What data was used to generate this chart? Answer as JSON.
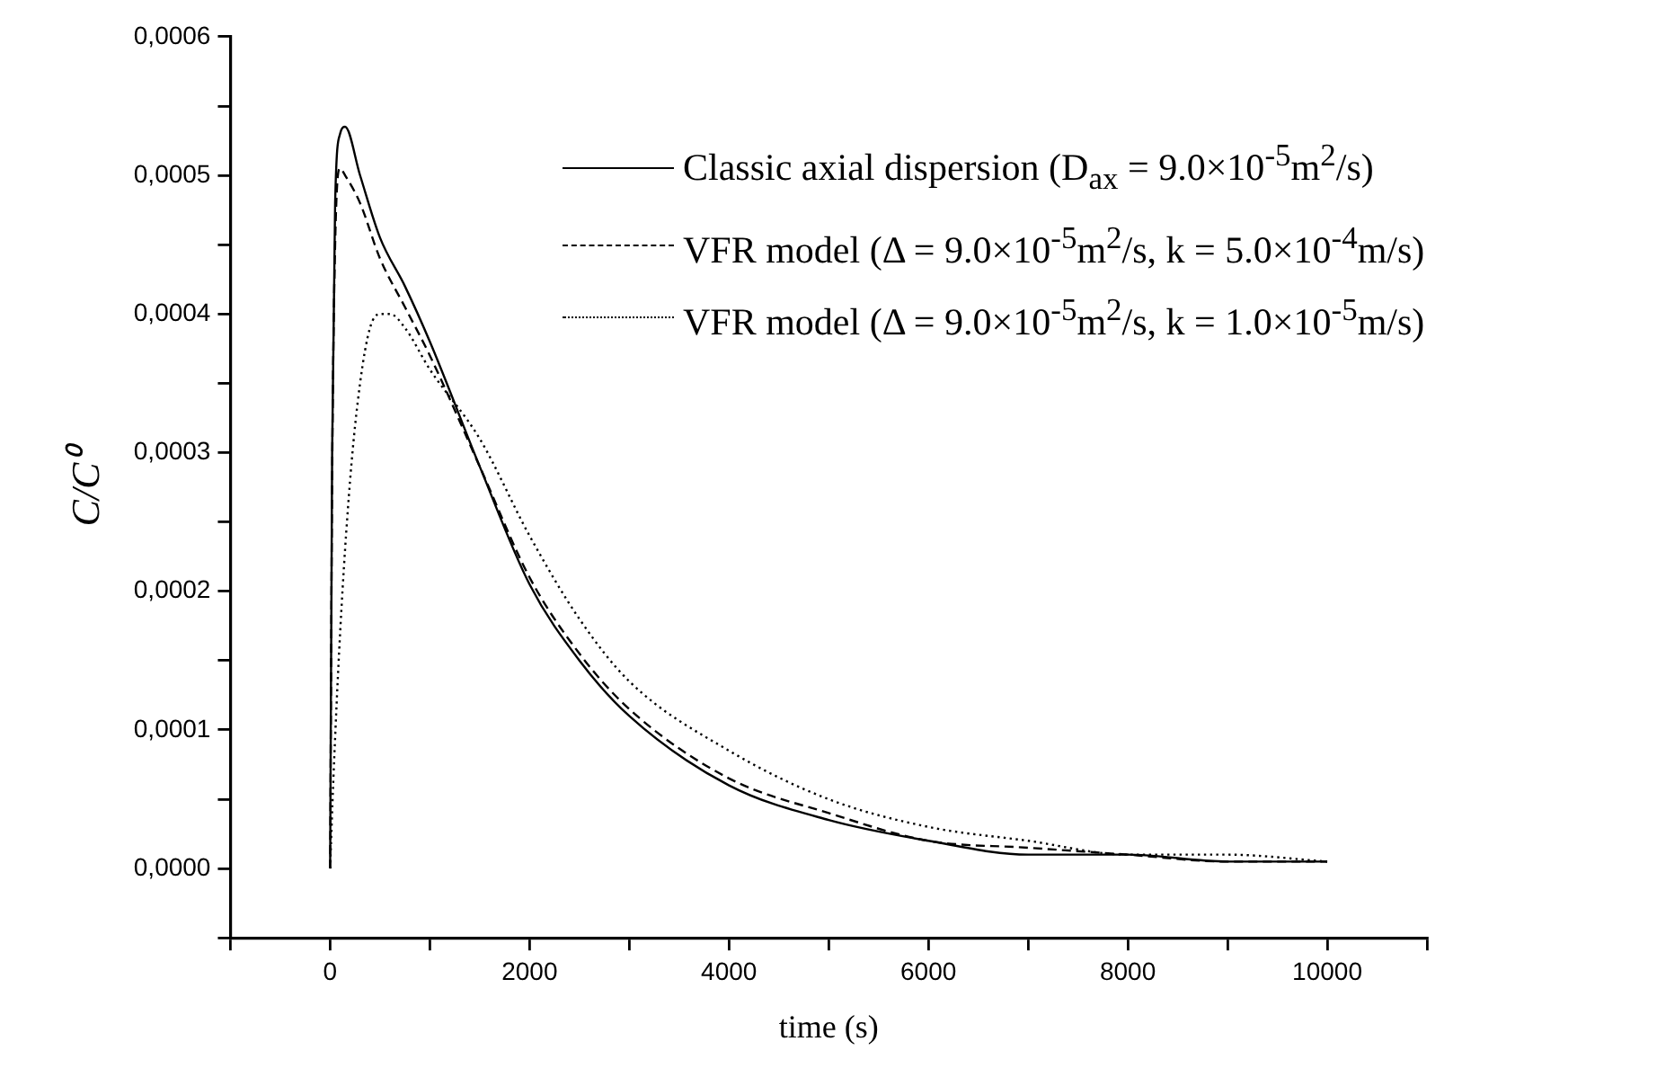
{
  "chart_data": {
    "type": "line",
    "xlabel": "time (s)",
    "ylabel": "C/C⁰",
    "xlim": [
      -1000,
      11000
    ],
    "ylim": [
      -5e-05,
      0.0006
    ],
    "xticks": [
      {
        "value": -1000,
        "label": null
      },
      0,
      {
        "value": 1000,
        "label": null
      },
      2000,
      {
        "value": 3000,
        "label": null
      },
      4000,
      {
        "value": 5000,
        "label": null
      },
      6000,
      {
        "value": 7000,
        "label": null
      },
      8000,
      {
        "value": 9000,
        "label": null
      },
      10000,
      {
        "value": 11000,
        "label": null
      }
    ],
    "yticks": [
      {
        "value": -5e-05,
        "label": null
      },
      {
        "value": 0,
        "label": "0,0000"
      },
      {
        "value": 5e-05,
        "label": null
      },
      {
        "value": 0.0001,
        "label": "0,0001"
      },
      {
        "value": 0.00015,
        "label": null
      },
      {
        "value": 0.0002,
        "label": "0,0002"
      },
      {
        "value": 0.00025,
        "label": null
      },
      {
        "value": 0.0003,
        "label": "0,0003"
      },
      {
        "value": 0.00035,
        "label": null
      },
      {
        "value": 0.0004,
        "label": "0,0004"
      },
      {
        "value": 0.00045,
        "label": null
      },
      {
        "value": 0.0005,
        "label": "0,0005"
      },
      {
        "value": 0.00055,
        "label": null
      },
      {
        "value": 0.0006,
        "label": "0,0006"
      }
    ],
    "grid": false,
    "legend": "top right",
    "marker": "none",
    "series": [
      {
        "name": "Classic axial dispersion (D$_{ax}$ = 9.0×10$^{-5}$m$^{2}$/s)",
        "color": "#000000",
        "line_style": "solid",
        "x": [
          0,
          20,
          50,
          100,
          150,
          300,
          500,
          750,
          1000,
          1500,
          2000,
          2500,
          3000,
          4000,
          5000,
          6000,
          7000,
          8000,
          9000,
          10000
        ],
        "values": [
          0,
          0.0003,
          0.00048,
          0.00053,
          0.000535,
          0.0005,
          0.000455,
          0.00042,
          0.00038,
          0.00029,
          0.000205,
          0.00015,
          0.00011,
          6e-05,
          3.5e-05,
          2e-05,
          1e-05,
          1e-05,
          5e-06,
          5e-06
        ]
      },
      {
        "name": "VFR model (Δ = 9.0×10$^{-5}$m$^{2}$/s, k = 5.0×10$^{-4}$m/s)",
        "color": "#000000",
        "line_style": "dashed",
        "x": [
          0,
          20,
          50,
          100,
          150,
          300,
          500,
          750,
          1000,
          1500,
          2000,
          2500,
          3000,
          4000,
          5000,
          6000,
          7000,
          8000,
          9000,
          10000
        ],
        "values": [
          0,
          0.00028,
          0.00045,
          0.000505,
          0.0005,
          0.00048,
          0.00044,
          0.000405,
          0.00037,
          0.00029,
          0.00021,
          0.000155,
          0.000115,
          6.5e-05,
          4e-05,
          2e-05,
          1.5e-05,
          1e-05,
          5e-06,
          5e-06
        ]
      },
      {
        "name": "VFR model (Δ = 9.0×10$^{-5}$m$^{2}$/s, k = 1.0×10$^{-5}$m/s)",
        "color": "#000000",
        "line_style": "dotted",
        "x": [
          0,
          30,
          100,
          200,
          300,
          400,
          500,
          600,
          750,
          1000,
          1500,
          2000,
          2500,
          3000,
          4000,
          5000,
          6000,
          7000,
          8000,
          9000,
          10000
        ],
        "values": [
          0,
          6e-05,
          0.00017,
          0.00028,
          0.00035,
          0.00039,
          0.0004,
          0.0004,
          0.00039,
          0.00036,
          0.00031,
          0.00024,
          0.00018,
          0.000135,
          8.5e-05,
          5e-05,
          3e-05,
          2e-05,
          1e-05,
          1e-05,
          5e-06
        ]
      }
    ]
  }
}
